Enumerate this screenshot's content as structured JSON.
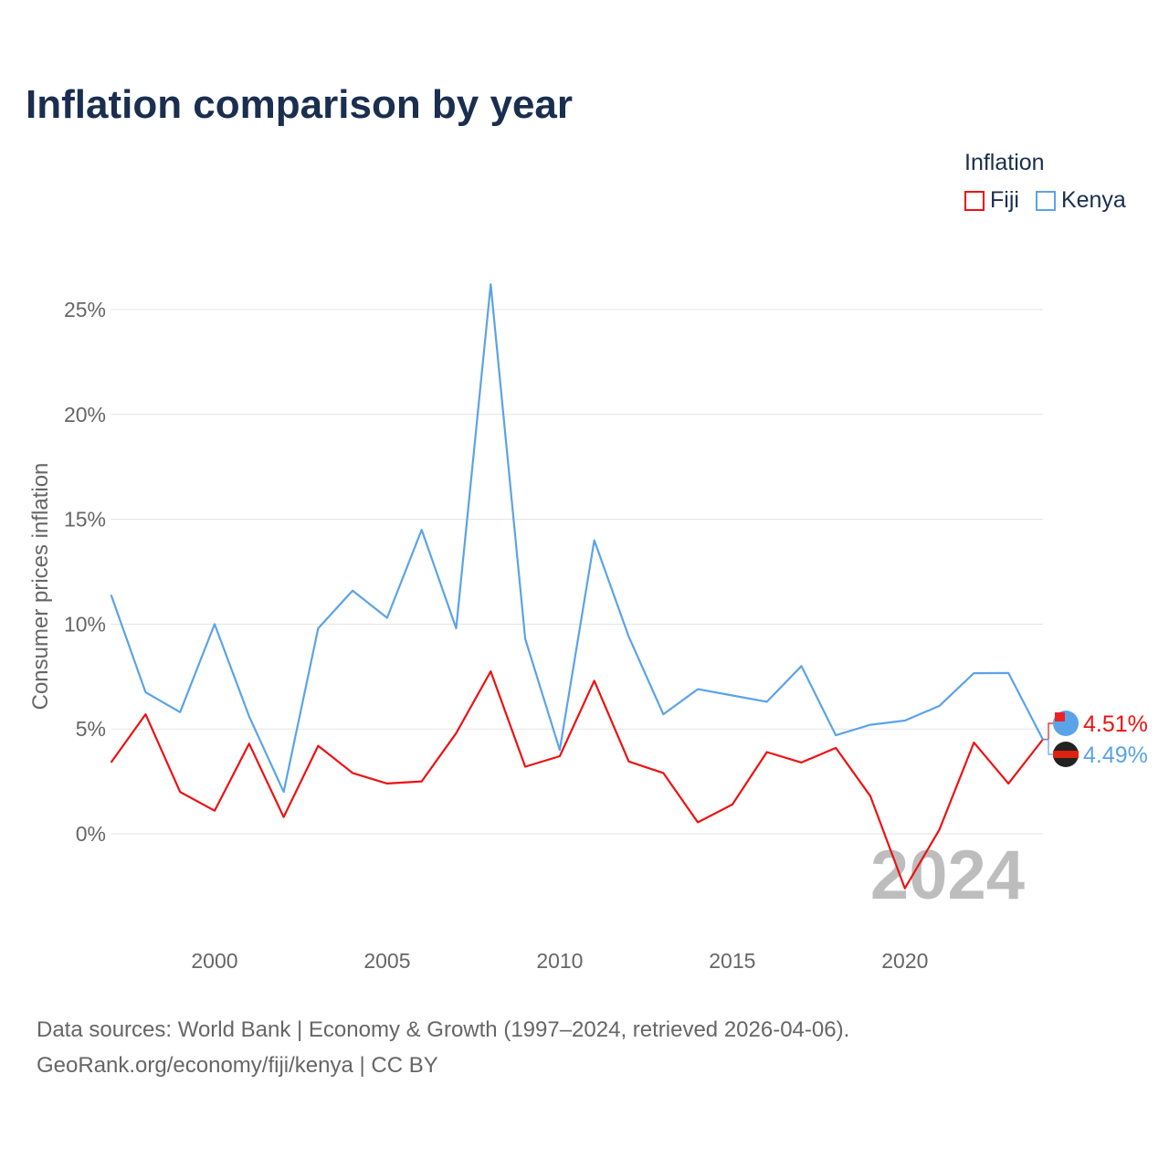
{
  "chart_data": {
    "type": "line",
    "title": "Inflation comparison by year",
    "ylabel": "Consumer prices inflation",
    "xlabel": "",
    "xlim": [
      1997,
      2024
    ],
    "ylim": [
      -4,
      27
    ],
    "x_ticks": [
      2000,
      2005,
      2010,
      2015,
      2020
    ],
    "y_ticks": [
      0,
      5,
      10,
      15,
      20,
      25
    ],
    "y_tick_labels": [
      "0%",
      "5%",
      "10%",
      "15%",
      "20%",
      "25%"
    ],
    "grid": true,
    "legend_title": "Inflation",
    "legend_position": "top-right",
    "year_watermark": "2024",
    "x": [
      1997,
      1998,
      1999,
      2000,
      2001,
      2002,
      2003,
      2004,
      2005,
      2006,
      2007,
      2008,
      2009,
      2010,
      2011,
      2012,
      2013,
      2014,
      2015,
      2016,
      2017,
      2018,
      2019,
      2020,
      2021,
      2022,
      2023,
      2024
    ],
    "series": [
      {
        "name": "Fiji",
        "color": "#ee1111",
        "end_label": "4.51%",
        "values": [
          3.4,
          5.7,
          2.0,
          1.1,
          4.3,
          0.8,
          4.2,
          2.9,
          2.4,
          2.5,
          4.8,
          7.75,
          3.2,
          3.7,
          7.3,
          3.45,
          2.9,
          0.55,
          1.4,
          3.9,
          3.4,
          4.1,
          1.8,
          -2.6,
          0.2,
          4.35,
          2.4,
          4.51
        ]
      },
      {
        "name": "Kenya",
        "color": "#5ba3e8",
        "end_label": "4.49%",
        "values": [
          11.4,
          6.75,
          5.8,
          10.0,
          5.6,
          2.0,
          9.8,
          11.6,
          10.3,
          14.5,
          9.8,
          26.2,
          9.3,
          4.0,
          14.0,
          9.4,
          5.7,
          6.9,
          6.6,
          6.3,
          8.0,
          4.7,
          5.2,
          5.4,
          6.1,
          7.66,
          7.67,
          4.49
        ]
      }
    ]
  },
  "source": {
    "line1": "Data sources: World Bank | Economy & Growth (1997–2024, retrieved 2026-04-06).",
    "line2": "GeoRank.org/economy/fiji/kenya | CC BY"
  }
}
